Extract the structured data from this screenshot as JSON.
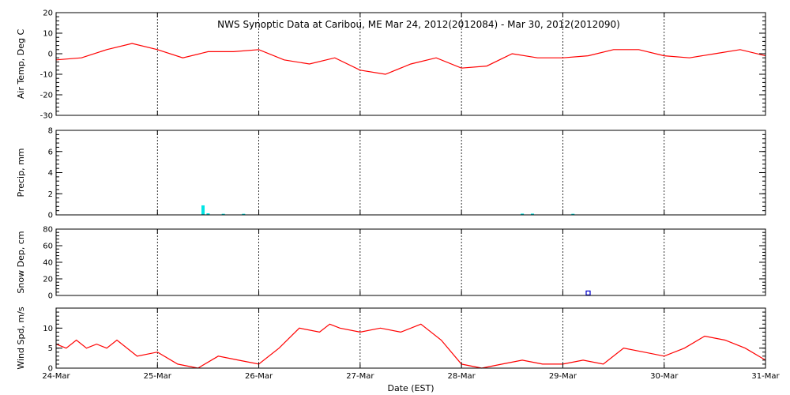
{
  "chart_data": {
    "type": "line",
    "title": "NWS Synoptic Data at Caribou, ME   Mar 24, 2012(2012084) - Mar 30, 2012(2012090)",
    "xlabel": "Date (EST)",
    "x_ticks": [
      "24-Mar",
      "25-Mar",
      "26-Mar",
      "27-Mar",
      "28-Mar",
      "29-Mar",
      "30-Mar",
      "31-Mar"
    ],
    "xlim": [
      "2012-03-24",
      "2012-03-31"
    ],
    "grid": true,
    "colors": {
      "air_temp": "#ff0000",
      "precip": "#00e5e5",
      "snow": "#0000cc",
      "wind": "#ff0000"
    },
    "panels": [
      {
        "id": "air_temp",
        "type": "line",
        "ylabel": "Air Temp, Deg C",
        "ylim": [
          -30,
          20
        ],
        "yticks": [
          20,
          10,
          0,
          -10,
          -20,
          -30
        ],
        "series": [
          {
            "x": [
              0,
              0.25,
              0.5,
              0.75,
              1,
              1.25,
              1.5,
              1.75,
              2,
              2.25,
              2.5,
              2.75,
              3,
              3.25,
              3.5,
              3.75,
              4,
              4.25,
              4.5,
              4.75,
              5,
              5.25,
              5.5,
              5.75,
              6,
              6.25,
              6.5,
              6.75,
              7
            ],
            "y": [
              -3,
              -2,
              2,
              5,
              2,
              -2,
              1,
              1,
              2,
              -3,
              -5,
              -2,
              -8,
              -10,
              -5,
              -2,
              -7,
              -6,
              0,
              -2,
              -2,
              -1,
              2,
              2,
              -1,
              -2,
              0,
              2,
              -1
            ]
          }
        ]
      },
      {
        "id": "precip",
        "type": "bar",
        "ylabel": "Precip, mm",
        "ylim": [
          0,
          8
        ],
        "yticks": [
          8,
          6,
          4,
          2,
          0
        ],
        "bars": [
          {
            "x": 1.45,
            "y": 0.9
          },
          {
            "x": 1.5,
            "y": 0.15
          },
          {
            "x": 1.65,
            "y": 0.1
          },
          {
            "x": 1.85,
            "y": 0.1
          },
          {
            "x": 4.6,
            "y": 0.12
          },
          {
            "x": 4.7,
            "y": 0.12
          },
          {
            "x": 5.1,
            "y": 0.1
          }
        ]
      },
      {
        "id": "snow",
        "type": "scatter",
        "ylabel": "Snow Dep, cm",
        "ylim": [
          0,
          80
        ],
        "yticks": [
          80,
          60,
          40,
          20,
          0
        ],
        "points": [
          {
            "x": 5.25,
            "y": 3
          }
        ]
      },
      {
        "id": "wind",
        "type": "line",
        "ylabel": "Wind Spd, m/s",
        "ylim": [
          0,
          15
        ],
        "yticks": [
          10,
          5,
          0
        ],
        "series": [
          {
            "x": [
              0,
              0.1,
              0.2,
              0.3,
              0.4,
              0.5,
              0.6,
              0.8,
              1,
              1.2,
              1.4,
              1.6,
              1.8,
              2,
              2.2,
              2.4,
              2.6,
              2.7,
              2.8,
              3,
              3.2,
              3.4,
              3.6,
              3.8,
              4,
              4.2,
              4.4,
              4.6,
              4.8,
              5,
              5.2,
              5.4,
              5.6,
              5.8,
              6,
              6.2,
              6.4,
              6.6,
              6.8,
              7
            ],
            "y": [
              6,
              5,
              7,
              5,
              6,
              5,
              7,
              3,
              4,
              1,
              0,
              3,
              2,
              1,
              5,
              10,
              9,
              11,
              10,
              9,
              10,
              9,
              11,
              7,
              1,
              0,
              1,
              2,
              1,
              1,
              2,
              1,
              5,
              4,
              3,
              5,
              8,
              7,
              5,
              2
            ]
          }
        ]
      }
    ]
  }
}
